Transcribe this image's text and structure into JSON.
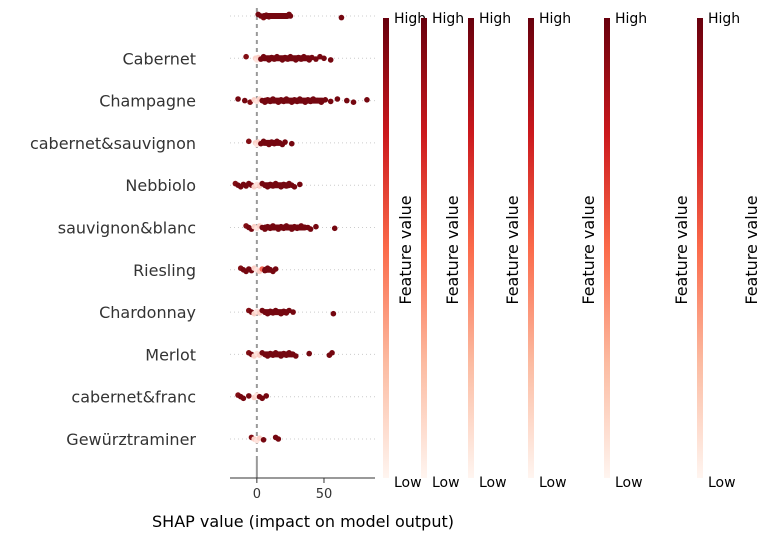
{
  "chart_data": {
    "type": "scatter",
    "variant": "shap-beeswarm",
    "title": "",
    "xlabel": "SHAP value (impact on model output)",
    "ylabel": "",
    "xlim": [
      -20,
      88
    ],
    "xticks": [
      0,
      50
    ],
    "grid": false,
    "colormap": {
      "low": "#fff5f0",
      "mid": "#f0442e",
      "high": "#67000d"
    },
    "colorbar": {
      "count": 6,
      "high_label": "High",
      "low_label": "Low",
      "axis_label": "Feature value"
    },
    "features": [
      {
        "name": "",
        "points": [
          {
            "x": 1,
            "v": 0.95
          },
          {
            "x": 3,
            "v": 0.95
          },
          {
            "x": 5,
            "v": 0.9
          },
          {
            "x": 7,
            "v": 0.95
          },
          {
            "x": 9,
            "v": 0.95
          },
          {
            "x": 24,
            "v": 0.95
          },
          {
            "x": 25,
            "v": 0.95
          },
          {
            "x": 63,
            "v": 0.95
          }
        ]
      },
      {
        "name": "Cabernet",
        "points": [
          {
            "x": -8,
            "v": 0.9
          },
          {
            "x": -1,
            "v": 0.1
          },
          {
            "x": 0,
            "v": 0.05
          },
          {
            "x": 1,
            "v": 0.1
          },
          {
            "x": 3,
            "v": 0.95
          },
          {
            "x": 5,
            "v": 0.95
          },
          {
            "x": 7,
            "v": 0.95
          },
          {
            "x": 9,
            "v": 0.95
          },
          {
            "x": 11,
            "v": 0.95
          },
          {
            "x": 13,
            "v": 0.95
          },
          {
            "x": 15,
            "v": 0.95
          },
          {
            "x": 17,
            "v": 0.95
          },
          {
            "x": 19,
            "v": 0.95
          },
          {
            "x": 21,
            "v": 0.95
          },
          {
            "x": 23,
            "v": 0.95
          },
          {
            "x": 25,
            "v": 0.95
          },
          {
            "x": 27,
            "v": 0.95
          },
          {
            "x": 29,
            "v": 0.95
          },
          {
            "x": 31,
            "v": 0.95
          },
          {
            "x": 33,
            "v": 0.95
          },
          {
            "x": 35,
            "v": 0.95
          },
          {
            "x": 37,
            "v": 0.95
          },
          {
            "x": 39,
            "v": 0.95
          },
          {
            "x": 41,
            "v": 0.95
          },
          {
            "x": 44,
            "v": 0.95
          },
          {
            "x": 47,
            "v": 0.95
          },
          {
            "x": 50,
            "v": 0.95
          },
          {
            "x": 55,
            "v": 0.95
          }
        ]
      },
      {
        "name": "Champagne",
        "points": [
          {
            "x": -14,
            "v": 0.95
          },
          {
            "x": -9,
            "v": 0.95
          },
          {
            "x": -5,
            "v": 0.9
          },
          {
            "x": -2,
            "v": 0.1
          },
          {
            "x": 0,
            "v": 0.05
          },
          {
            "x": 2,
            "v": 0.1
          },
          {
            "x": 4,
            "v": 0.95
          },
          {
            "x": 6,
            "v": 0.95
          },
          {
            "x": 8,
            "v": 0.95
          },
          {
            "x": 10,
            "v": 0.95
          },
          {
            "x": 12,
            "v": 0.95
          },
          {
            "x": 14,
            "v": 0.95
          },
          {
            "x": 16,
            "v": 0.95
          },
          {
            "x": 18,
            "v": 0.95
          },
          {
            "x": 20,
            "v": 0.95
          },
          {
            "x": 22,
            "v": 0.95
          },
          {
            "x": 24,
            "v": 0.95
          },
          {
            "x": 26,
            "v": 0.95
          },
          {
            "x": 28,
            "v": 0.95
          },
          {
            "x": 30,
            "v": 0.95
          },
          {
            "x": 32,
            "v": 0.95
          },
          {
            "x": 34,
            "v": 0.95
          },
          {
            "x": 36,
            "v": 0.95
          },
          {
            "x": 38,
            "v": 0.95
          },
          {
            "x": 40,
            "v": 0.95
          },
          {
            "x": 42,
            "v": 0.95
          },
          {
            "x": 45,
            "v": 0.95
          },
          {
            "x": 48,
            "v": 0.95
          },
          {
            "x": 51,
            "v": 0.95
          },
          {
            "x": 55,
            "v": 0.95
          },
          {
            "x": 60,
            "v": 0.95
          },
          {
            "x": 67,
            "v": 0.95
          },
          {
            "x": 72,
            "v": 0.95
          },
          {
            "x": 82,
            "v": 0.95
          }
        ]
      },
      {
        "name": "cabernet&sauvignon",
        "points": [
          {
            "x": -6,
            "v": 0.9
          },
          {
            "x": -1,
            "v": 0.1
          },
          {
            "x": 0,
            "v": 0.05
          },
          {
            "x": 1,
            "v": 0.1
          },
          {
            "x": 3,
            "v": 0.95
          },
          {
            "x": 5,
            "v": 0.95
          },
          {
            "x": 7,
            "v": 0.95
          },
          {
            "x": 9,
            "v": 0.95
          },
          {
            "x": 11,
            "v": 0.95
          },
          {
            "x": 13,
            "v": 0.95
          },
          {
            "x": 15,
            "v": 0.95
          },
          {
            "x": 17,
            "v": 0.95
          },
          {
            "x": 19,
            "v": 0.95
          },
          {
            "x": 21,
            "v": 0.95
          },
          {
            "x": 26,
            "v": 0.95
          }
        ]
      },
      {
        "name": "Nebbiolo",
        "points": [
          {
            "x": -16,
            "v": 0.9
          },
          {
            "x": -14,
            "v": 0.95
          },
          {
            "x": -12,
            "v": 0.95
          },
          {
            "x": -10,
            "v": 0.95
          },
          {
            "x": -8,
            "v": 0.95
          },
          {
            "x": -6,
            "v": 0.95
          },
          {
            "x": -4,
            "v": 0.95
          },
          {
            "x": -2,
            "v": 0.1
          },
          {
            "x": 0,
            "v": 0.05
          },
          {
            "x": 2,
            "v": 0.1
          },
          {
            "x": 4,
            "v": 0.95
          },
          {
            "x": 6,
            "v": 0.95
          },
          {
            "x": 8,
            "v": 0.95
          },
          {
            "x": 10,
            "v": 0.95
          },
          {
            "x": 12,
            "v": 0.95
          },
          {
            "x": 14,
            "v": 0.95
          },
          {
            "x": 16,
            "v": 0.95
          },
          {
            "x": 18,
            "v": 0.95
          },
          {
            "x": 20,
            "v": 0.95
          },
          {
            "x": 22,
            "v": 0.95
          },
          {
            "x": 24,
            "v": 0.95
          },
          {
            "x": 26,
            "v": 0.95
          },
          {
            "x": 28,
            "v": 0.95
          },
          {
            "x": 32,
            "v": 0.95
          }
        ]
      },
      {
        "name": "sauvignon&blanc",
        "points": [
          {
            "x": -8,
            "v": 0.9
          },
          {
            "x": -6,
            "v": 0.95
          },
          {
            "x": -4,
            "v": 0.95
          },
          {
            "x": -2,
            "v": 0.1
          },
          {
            "x": 0,
            "v": 0.05
          },
          {
            "x": 2,
            "v": 0.1
          },
          {
            "x": 4,
            "v": 0.95
          },
          {
            "x": 6,
            "v": 0.95
          },
          {
            "x": 8,
            "v": 0.95
          },
          {
            "x": 10,
            "v": 0.95
          },
          {
            "x": 12,
            "v": 0.95
          },
          {
            "x": 14,
            "v": 0.95
          },
          {
            "x": 16,
            "v": 0.95
          },
          {
            "x": 18,
            "v": 0.95
          },
          {
            "x": 20,
            "v": 0.95
          },
          {
            "x": 22,
            "v": 0.95
          },
          {
            "x": 24,
            "v": 0.95
          },
          {
            "x": 26,
            "v": 0.95
          },
          {
            "x": 28,
            "v": 0.95
          },
          {
            "x": 30,
            "v": 0.95
          },
          {
            "x": 33,
            "v": 0.95
          },
          {
            "x": 38,
            "v": 0.95
          },
          {
            "x": 40,
            "v": 0.95
          },
          {
            "x": 44,
            "v": 0.95
          },
          {
            "x": 58,
            "v": 0.95
          }
        ]
      },
      {
        "name": "Riesling",
        "points": [
          {
            "x": -12,
            "v": 0.9
          },
          {
            "x": -10,
            "v": 0.95
          },
          {
            "x": -8,
            "v": 0.95
          },
          {
            "x": -6,
            "v": 0.95
          },
          {
            "x": -4,
            "v": 0.95
          },
          {
            "x": -2,
            "v": 0.1
          },
          {
            "x": 0,
            "v": 0.05
          },
          {
            "x": 2,
            "v": 0.1
          },
          {
            "x": 4,
            "v": 0.4
          },
          {
            "x": 6,
            "v": 0.95
          },
          {
            "x": 8,
            "v": 0.95
          },
          {
            "x": 10,
            "v": 0.95
          },
          {
            "x": 12,
            "v": 0.95
          },
          {
            "x": 14,
            "v": 0.95
          }
        ]
      },
      {
        "name": "Chardonnay",
        "points": [
          {
            "x": -6,
            "v": 0.9
          },
          {
            "x": -4,
            "v": 0.95
          },
          {
            "x": -2,
            "v": 0.1
          },
          {
            "x": 0,
            "v": 0.05
          },
          {
            "x": 2,
            "v": 0.1
          },
          {
            "x": 4,
            "v": 0.95
          },
          {
            "x": 6,
            "v": 0.95
          },
          {
            "x": 8,
            "v": 0.95
          },
          {
            "x": 10,
            "v": 0.95
          },
          {
            "x": 12,
            "v": 0.95
          },
          {
            "x": 14,
            "v": 0.95
          },
          {
            "x": 16,
            "v": 0.95
          },
          {
            "x": 18,
            "v": 0.95
          },
          {
            "x": 20,
            "v": 0.95
          },
          {
            "x": 22,
            "v": 0.95
          },
          {
            "x": 24,
            "v": 0.95
          },
          {
            "x": 27,
            "v": 0.95
          },
          {
            "x": 57,
            "v": 0.95
          }
        ]
      },
      {
        "name": "Merlot",
        "points": [
          {
            "x": -6,
            "v": 0.9
          },
          {
            "x": -4,
            "v": 0.95
          },
          {
            "x": -2,
            "v": 0.1
          },
          {
            "x": 0,
            "v": 0.05
          },
          {
            "x": 2,
            "v": 0.1
          },
          {
            "x": 4,
            "v": 0.95
          },
          {
            "x": 6,
            "v": 0.95
          },
          {
            "x": 8,
            "v": 0.95
          },
          {
            "x": 10,
            "v": 0.95
          },
          {
            "x": 12,
            "v": 0.95
          },
          {
            "x": 14,
            "v": 0.95
          },
          {
            "x": 16,
            "v": 0.95
          },
          {
            "x": 18,
            "v": 0.95
          },
          {
            "x": 20,
            "v": 0.95
          },
          {
            "x": 22,
            "v": 0.95
          },
          {
            "x": 24,
            "v": 0.95
          },
          {
            "x": 26,
            "v": 0.95
          },
          {
            "x": 29,
            "v": 0.95
          },
          {
            "x": 39,
            "v": 0.95
          },
          {
            "x": 54,
            "v": 0.95
          },
          {
            "x": 56,
            "v": 0.95
          }
        ]
      },
      {
        "name": "cabernet&franc",
        "points": [
          {
            "x": -14,
            "v": 0.9
          },
          {
            "x": -12,
            "v": 0.95
          },
          {
            "x": -10,
            "v": 0.95
          },
          {
            "x": -6,
            "v": 0.95
          },
          {
            "x": -2,
            "v": 0.1
          },
          {
            "x": 0,
            "v": 0.05
          },
          {
            "x": 2,
            "v": 0.95
          },
          {
            "x": 4,
            "v": 0.95
          },
          {
            "x": 7,
            "v": 0.95
          }
        ]
      },
      {
        "name": "Gewürztraminer",
        "points": [
          {
            "x": -4,
            "v": 0.9
          },
          {
            "x": -2,
            "v": 0.1
          },
          {
            "x": 0,
            "v": 0.05
          },
          {
            "x": 2,
            "v": 0.1
          },
          {
            "x": 5,
            "v": 0.95
          },
          {
            "x": 14,
            "v": 0.95
          },
          {
            "x": 16,
            "v": 0.95
          }
        ]
      }
    ]
  }
}
